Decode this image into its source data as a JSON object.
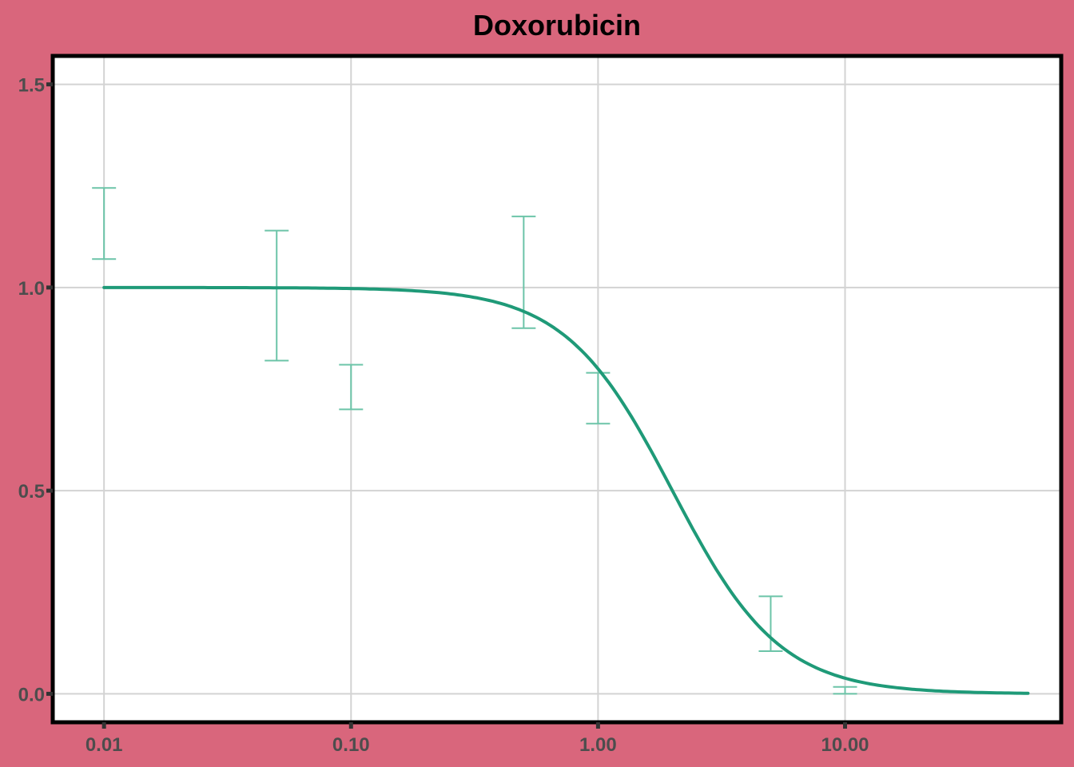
{
  "chart_data": {
    "type": "line",
    "title": "Doxorubicin",
    "xlabel": "",
    "ylabel": "",
    "x_scale": "log",
    "xlim": [
      0.0062,
      75
    ],
    "ylim": [
      -0.07,
      1.57
    ],
    "x_ticks": [
      0.01,
      0.1,
      1,
      10
    ],
    "x_tick_labels": [
      "0.01",
      "0.10",
      "1.00",
      "10.00"
    ],
    "y_ticks": [
      0,
      0.5,
      1,
      1.5
    ],
    "y_tick_labels": [
      "0.0",
      "0.5",
      "1.0",
      "1.5"
    ],
    "grid": true,
    "legend": "none",
    "colors": {
      "background": "#d9667c",
      "panel": "#ffffff",
      "grid": "#d3d3d3",
      "curve": "#1f9a78",
      "error_bars": "#6cc4a8",
      "frame": "#000000"
    },
    "fit_curve": {
      "model": "log-logistic",
      "top": 1.0,
      "bottom": 0.0,
      "ec50": 2.0,
      "hill": 2.0,
      "x_range": [
        0.01,
        55
      ]
    },
    "error_bars": [
      {
        "x": 0.01,
        "low": 1.07,
        "high": 1.245
      },
      {
        "x": 0.05,
        "low": 0.82,
        "high": 1.14
      },
      {
        "x": 0.1,
        "low": 0.7,
        "high": 0.81
      },
      {
        "x": 0.5,
        "low": 0.9,
        "high": 1.175
      },
      {
        "x": 1.0,
        "low": 0.665,
        "high": 0.79
      },
      {
        "x": 5.0,
        "low": 0.105,
        "high": 0.24
      },
      {
        "x": 10.0,
        "low": 0.0,
        "high": 0.017
      }
    ]
  }
}
